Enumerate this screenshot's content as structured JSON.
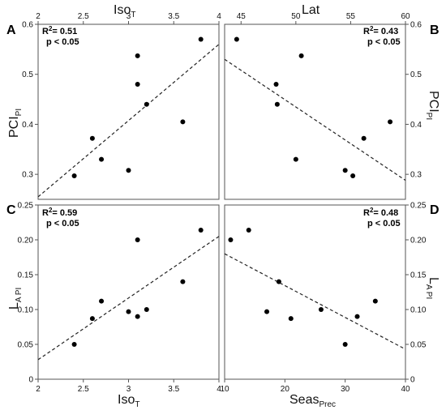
{
  "chart_data": [
    {
      "type": "scatter",
      "panel": "A",
      "xlabel": "Iso",
      "xlabel_sub": "T",
      "ylabel": "PCI",
      "ylabel_sub": "PI",
      "xlim": [
        2,
        4
      ],
      "ylim": [
        0.25,
        0.6
      ],
      "xticks": [
        "2",
        "2.5",
        "3",
        "3.5",
        "4"
      ],
      "yticks": [
        "0.3",
        "0.4",
        "0.5",
        "0.6"
      ],
      "stats": {
        "r2_prefix": "R",
        "r2_sup": "2",
        "r2_value": "= 0.51",
        "p": "p < 0.05"
      },
      "points": [
        [
          2.4,
          0.297
        ],
        [
          2.6,
          0.372
        ],
        [
          2.7,
          0.33
        ],
        [
          3.0,
          0.308
        ],
        [
          3.1,
          0.537
        ],
        [
          3.1,
          0.48
        ],
        [
          3.2,
          0.44
        ],
        [
          3.6,
          0.405
        ],
        [
          3.8,
          0.57
        ]
      ],
      "fit": [
        [
          2,
          0.255
        ],
        [
          4,
          0.56
        ]
      ]
    },
    {
      "type": "scatter",
      "panel": "B",
      "xlabel": "Lat",
      "xlabel_sub": "",
      "ylabel": "PCI",
      "ylabel_sub": "PI",
      "xlim": [
        43.5,
        60
      ],
      "ylim": [
        0.25,
        0.6
      ],
      "xticks": [
        "45",
        "50",
        "55",
        "60"
      ],
      "yticks": [
        "0.3",
        "0.4",
        "0.5",
        "0.6"
      ],
      "stats": {
        "r2_prefix": "R",
        "r2_sup": "2",
        "r2_value": "= 0.43",
        "p": "p < 0.05"
      },
      "points": [
        [
          44.6,
          0.57
        ],
        [
          48.2,
          0.48
        ],
        [
          48.3,
          0.44
        ],
        [
          50.5,
          0.537
        ],
        [
          50.0,
          0.33
        ],
        [
          54.5,
          0.308
        ],
        [
          55.2,
          0.297
        ],
        [
          56.2,
          0.372
        ],
        [
          58.6,
          0.405
        ]
      ],
      "fit": [
        [
          43.5,
          0.53
        ],
        [
          60,
          0.288
        ]
      ]
    },
    {
      "type": "scatter",
      "panel": "C",
      "xlabel": "Iso",
      "xlabel_sub": "T",
      "ylabel": "L",
      "ylabel_sub": "A PI",
      "xlim": [
        2,
        4
      ],
      "ylim": [
        0,
        0.25
      ],
      "xticks": [
        "2",
        "2.5",
        "3",
        "3.5",
        "4"
      ],
      "yticks": [
        "0",
        "0.05",
        "0.10",
        "0.15",
        "0.20",
        "0.25"
      ],
      "stats": {
        "r2_prefix": "R",
        "r2_sup": "2",
        "r2_value": "= 0.59",
        "p": "p < 0.05"
      },
      "points": [
        [
          2.4,
          0.05
        ],
        [
          2.6,
          0.087
        ],
        [
          2.7,
          0.112
        ],
        [
          3.0,
          0.097
        ],
        [
          3.1,
          0.09
        ],
        [
          3.1,
          0.2
        ],
        [
          3.2,
          0.1
        ],
        [
          3.6,
          0.14
        ],
        [
          3.8,
          0.214
        ]
      ],
      "fit": [
        [
          2,
          0.028
        ],
        [
          4,
          0.205
        ]
      ]
    },
    {
      "type": "scatter",
      "panel": "D",
      "xlabel": "Seas",
      "xlabel_sub": "Prec",
      "ylabel": "L",
      "ylabel_sub": "A PI",
      "xlim": [
        10,
        40
      ],
      "ylim": [
        0,
        0.25
      ],
      "xticks": [
        "10",
        "20",
        "30",
        "40"
      ],
      "yticks": [
        "0",
        "0.05",
        "0.10",
        "0.15",
        "0.20",
        "0.25"
      ],
      "stats": {
        "r2_prefix": "R",
        "r2_sup": "2",
        "r2_value": "= 0.48",
        "p": "p < 0.05"
      },
      "points": [
        [
          11,
          0.2
        ],
        [
          14,
          0.214
        ],
        [
          17,
          0.097
        ],
        [
          19,
          0.14
        ],
        [
          21,
          0.087
        ],
        [
          26,
          0.1
        ],
        [
          30,
          0.05
        ],
        [
          32,
          0.09
        ],
        [
          35,
          0.112
        ]
      ],
      "fit": [
        [
          10,
          0.18
        ],
        [
          40,
          0.043
        ]
      ]
    }
  ]
}
